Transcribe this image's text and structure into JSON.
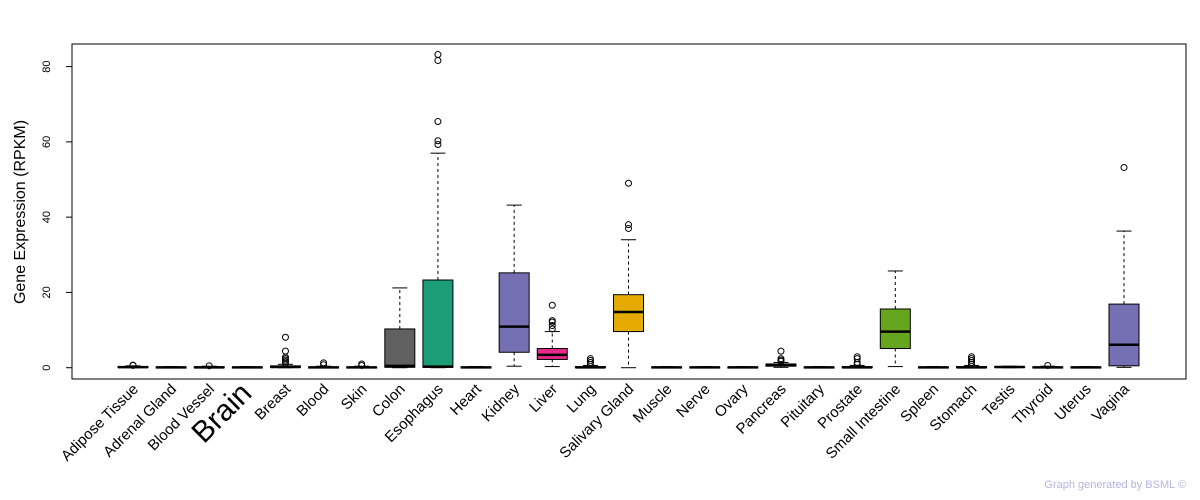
{
  "chart_data": {
    "type": "boxplot",
    "ylabel": "Gene Expression (RPKM)",
    "y_ticks": [
      0,
      20,
      40,
      60,
      80
    ],
    "ylim": [
      -3,
      86
    ],
    "highlight_category": "Brain",
    "highlight_color": "#ff0000",
    "credit": "Graph generated by BSML ©",
    "categories": [
      {
        "name": "Adipose Tissue",
        "color": "#ffffff",
        "min": 0,
        "q1": 0.05,
        "median": 0.15,
        "q3": 0.3,
        "max": 0.5,
        "outliers": [
          0.6,
          0.7
        ]
      },
      {
        "name": "Adrenal Gland",
        "color": "#ffffff",
        "min": 0,
        "q1": 0.05,
        "median": 0.1,
        "q3": 0.2,
        "max": 0.3,
        "outliers": []
      },
      {
        "name": "Blood Vessel",
        "color": "#ffffff",
        "min": 0,
        "q1": 0.05,
        "median": 0.1,
        "q3": 0.25,
        "max": 0.4,
        "outliers": [
          0.5
        ]
      },
      {
        "name": "Brain",
        "color": "#ffffff",
        "min": 0,
        "q1": 0.05,
        "median": 0.1,
        "q3": 0.2,
        "max": 0.3,
        "outliers": []
      },
      {
        "name": "Breast",
        "color": "#ffffff",
        "min": 0,
        "q1": 0.1,
        "median": 0.2,
        "q3": 0.5,
        "max": 0.9,
        "outliers": [
          1.2,
          1.6,
          2.0,
          2.4,
          2.8,
          4.4,
          8.1
        ]
      },
      {
        "name": "Blood",
        "color": "#ffffff",
        "min": 0,
        "q1": 0.05,
        "median": 0.1,
        "q3": 0.2,
        "max": 0.4,
        "outliers": [
          0.8,
          1.3
        ]
      },
      {
        "name": "Skin",
        "color": "#ffffff",
        "min": 0,
        "q1": 0.05,
        "median": 0.1,
        "q3": 0.2,
        "max": 0.4,
        "outliers": [
          0.6,
          1.0
        ]
      },
      {
        "name": "Colon",
        "color": "#606060",
        "min": 0,
        "q1": 0.1,
        "median": 0.5,
        "q3": 10.3,
        "max": 21.2,
        "outliers": []
      },
      {
        "name": "Esophagus",
        "color": "#1b9e77",
        "min": 0,
        "q1": 0.1,
        "median": 0.3,
        "q3": 23.3,
        "max": 57.0,
        "outliers": [
          59.3,
          60.3,
          65.4,
          81.6,
          83.2
        ]
      },
      {
        "name": "Heart",
        "color": "#ffffff",
        "min": 0,
        "q1": 0.05,
        "median": 0.1,
        "q3": 0.2,
        "max": 0.3,
        "outliers": []
      },
      {
        "name": "Kidney",
        "color": "#7570b3",
        "min": 0.4,
        "q1": 4.1,
        "median": 10.9,
        "q3": 25.2,
        "max": 43.2,
        "outliers": []
      },
      {
        "name": "Liver",
        "color": "#e7298a",
        "min": 0.3,
        "q1": 2.2,
        "median": 3.4,
        "q3": 5.1,
        "max": 9.6,
        "outliers": [
          10.3,
          11.2,
          12.1,
          12.5,
          16.6
        ]
      },
      {
        "name": "Lung",
        "color": "#ffffff",
        "min": 0,
        "q1": 0.05,
        "median": 0.1,
        "q3": 0.3,
        "max": 0.6,
        "outliers": [
          0.9,
          1.4,
          1.9,
          2.4
        ]
      },
      {
        "name": "Salivary Gland",
        "color": "#e6ab02",
        "min": 0,
        "q1": 9.6,
        "median": 14.8,
        "q3": 19.4,
        "max": 34.0,
        "outliers": [
          37.0,
          38.0,
          49.0
        ]
      },
      {
        "name": "Muscle",
        "color": "#ffffff",
        "min": 0,
        "q1": 0.05,
        "median": 0.1,
        "q3": 0.2,
        "max": 0.3,
        "outliers": []
      },
      {
        "name": "Nerve",
        "color": "#ffffff",
        "min": 0,
        "q1": 0.05,
        "median": 0.1,
        "q3": 0.2,
        "max": 0.3,
        "outliers": []
      },
      {
        "name": "Ovary",
        "color": "#ffffff",
        "min": 0,
        "q1": 0.05,
        "median": 0.1,
        "q3": 0.2,
        "max": 0.3,
        "outliers": []
      },
      {
        "name": "Pancreas",
        "color": "#ffffff",
        "min": 0.1,
        "q1": 0.4,
        "median": 0.7,
        "q3": 1.0,
        "max": 1.4,
        "outliers": [
          1.7,
          2.0,
          2.4,
          4.4
        ]
      },
      {
        "name": "Pituitary",
        "color": "#ffffff",
        "min": 0,
        "q1": 0.05,
        "median": 0.1,
        "q3": 0.2,
        "max": 0.3,
        "outliers": []
      },
      {
        "name": "Prostate",
        "color": "#ffffff",
        "min": 0,
        "q1": 0.05,
        "median": 0.1,
        "q3": 0.3,
        "max": 0.6,
        "outliers": [
          0.9,
          1.4,
          2.4,
          2.9
        ]
      },
      {
        "name": "Small Intestine",
        "color": "#66a61e",
        "min": 0.3,
        "q1": 5.1,
        "median": 9.6,
        "q3": 15.6,
        "max": 25.7,
        "outliers": []
      },
      {
        "name": "Spleen",
        "color": "#ffffff",
        "min": 0,
        "q1": 0.05,
        "median": 0.1,
        "q3": 0.2,
        "max": 0.3,
        "outliers": []
      },
      {
        "name": "Stomach",
        "color": "#ffffff",
        "min": 0,
        "q1": 0.05,
        "median": 0.1,
        "q3": 0.3,
        "max": 0.6,
        "outliers": [
          0.9,
          1.4,
          1.9,
          2.4,
          2.9
        ]
      },
      {
        "name": "Testis",
        "color": "#ffffff",
        "min": 0,
        "q1": 0.05,
        "median": 0.2,
        "q3": 0.3,
        "max": 0.4,
        "outliers": []
      },
      {
        "name": "Thyroid",
        "color": "#ffffff",
        "min": 0,
        "q1": 0.05,
        "median": 0.1,
        "q3": 0.2,
        "max": 0.4,
        "outliers": [
          0.6
        ]
      },
      {
        "name": "Uterus",
        "color": "#ffffff",
        "min": 0,
        "q1": 0.05,
        "median": 0.1,
        "q3": 0.2,
        "max": 0.3,
        "outliers": []
      },
      {
        "name": "Vagina",
        "color": "#7570b3",
        "min": 0.1,
        "q1": 0.5,
        "median": 6.1,
        "q3": 16.9,
        "max": 36.3,
        "outliers": [
          53.2
        ]
      }
    ]
  }
}
